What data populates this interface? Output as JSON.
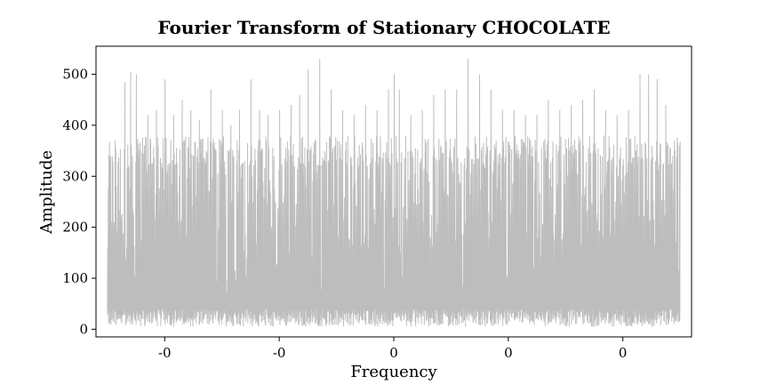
{
  "chart_data": {
    "type": "line",
    "title": "Fourier Transform of Stationary CHOCOLATE",
    "xlabel": "Frequency",
    "ylabel": "Amplitude",
    "xlim": [
      -0.52,
      0.52
    ],
    "ylim": [
      -15,
      555
    ],
    "x_ticks": [
      {
        "value": -0.4,
        "label": "-0"
      },
      {
        "value": -0.2,
        "label": "-0"
      },
      {
        "value": 0.0,
        "label": "0"
      },
      {
        "value": 0.2,
        "label": "0"
      },
      {
        "value": 0.4,
        "label": "0"
      }
    ],
    "y_ticks": [
      0,
      100,
      200,
      300,
      400,
      500
    ],
    "grid": false,
    "series": [
      {
        "color": "#bdbdbd",
        "x_range": [
          -0.5,
          0.5
        ],
        "samples": 2000,
        "baseline_low": [
          5,
          40
        ],
        "typical_high": [
          320,
          380
        ],
        "peaks": [
          {
            "x": -0.487,
            "y": 370
          },
          {
            "x": -0.47,
            "y": 485
          },
          {
            "x": -0.46,
            "y": 505
          },
          {
            "x": -0.45,
            "y": 500
          },
          {
            "x": -0.43,
            "y": 420
          },
          {
            "x": -0.415,
            "y": 430
          },
          {
            "x": -0.4,
            "y": 490
          },
          {
            "x": -0.385,
            "y": 420
          },
          {
            "x": -0.37,
            "y": 450
          },
          {
            "x": -0.355,
            "y": 430
          },
          {
            "x": -0.34,
            "y": 410
          },
          {
            "x": -0.32,
            "y": 470
          },
          {
            "x": -0.3,
            "y": 430
          },
          {
            "x": -0.285,
            "y": 400
          },
          {
            "x": -0.27,
            "y": 430
          },
          {
            "x": -0.25,
            "y": 490
          },
          {
            "x": -0.235,
            "y": 430
          },
          {
            "x": -0.22,
            "y": 420
          },
          {
            "x": -0.2,
            "y": 430
          },
          {
            "x": -0.18,
            "y": 440
          },
          {
            "x": -0.165,
            "y": 460
          },
          {
            "x": -0.15,
            "y": 510
          },
          {
            "x": -0.13,
            "y": 530
          },
          {
            "x": -0.11,
            "y": 470
          },
          {
            "x": -0.09,
            "y": 430
          },
          {
            "x": -0.07,
            "y": 420
          },
          {
            "x": -0.05,
            "y": 440
          },
          {
            "x": -0.03,
            "y": 430
          },
          {
            "x": -0.01,
            "y": 470
          },
          {
            "x": 0.0,
            "y": 500
          },
          {
            "x": 0.01,
            "y": 470
          },
          {
            "x": 0.03,
            "y": 420
          },
          {
            "x": 0.05,
            "y": 430
          },
          {
            "x": 0.07,
            "y": 460
          },
          {
            "x": 0.09,
            "y": 470
          },
          {
            "x": 0.11,
            "y": 470
          },
          {
            "x": 0.13,
            "y": 530
          },
          {
            "x": 0.15,
            "y": 500
          },
          {
            "x": 0.17,
            "y": 470
          },
          {
            "x": 0.19,
            "y": 430
          },
          {
            "x": 0.21,
            "y": 430
          },
          {
            "x": 0.23,
            "y": 420
          },
          {
            "x": 0.25,
            "y": 420
          },
          {
            "x": 0.27,
            "y": 450
          },
          {
            "x": 0.29,
            "y": 430
          },
          {
            "x": 0.31,
            "y": 440
          },
          {
            "x": 0.33,
            "y": 450
          },
          {
            "x": 0.35,
            "y": 470
          },
          {
            "x": 0.37,
            "y": 430
          },
          {
            "x": 0.39,
            "y": 420
          },
          {
            "x": 0.41,
            "y": 430
          },
          {
            "x": 0.43,
            "y": 500
          },
          {
            "x": 0.445,
            "y": 500
          },
          {
            "x": 0.46,
            "y": 490
          },
          {
            "x": 0.475,
            "y": 440
          },
          {
            "x": 0.49,
            "y": 370
          }
        ]
      }
    ]
  }
}
